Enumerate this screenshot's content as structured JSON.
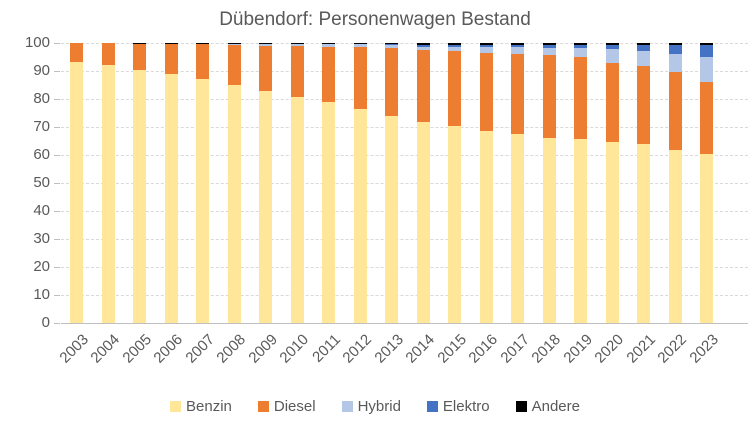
{
  "chart_data": {
    "type": "bar",
    "stacked": true,
    "percent_stacked": true,
    "title": "Dübendorf: Personenwagen Bestand",
    "categories": [
      "2003",
      "2004",
      "2005",
      "2006",
      "2007",
      "2008",
      "2009",
      "2010",
      "2011",
      "2012",
      "2013",
      "2014",
      "2015",
      "2016",
      "2017",
      "2018",
      "2019",
      "2020",
      "2021",
      "2022",
      "2023"
    ],
    "series": [
      {
        "name": "Benzin",
        "color": "#FFE699",
        "values": [
          93.2,
          92.3,
          90.4,
          88.8,
          87.1,
          85.0,
          82.9,
          80.8,
          78.9,
          76.4,
          73.9,
          71.7,
          70.5,
          68.6,
          67.5,
          66.0,
          65.6,
          64.5,
          63.8,
          61.8,
          60.2
        ]
      },
      {
        "name": "Diesel",
        "color": "#ED7D31",
        "values": [
          6.8,
          7.7,
          9.1,
          10.7,
          12.4,
          14.3,
          16.2,
          18.1,
          19.8,
          22.1,
          24.4,
          25.8,
          26.5,
          27.8,
          28.5,
          29.6,
          29.5,
          28.4,
          28.0,
          28.0,
          26.0
        ]
      },
      {
        "name": "Hybrid",
        "color": "#B4C7E7",
        "values": [
          0,
          0,
          0,
          0,
          0,
          0.2,
          0.4,
          0.6,
          0.8,
          1.0,
          1.1,
          1.2,
          1.5,
          2.1,
          2.4,
          2.6,
          3.0,
          5.0,
          5.4,
          6.3,
          8.7
        ]
      },
      {
        "name": "Elektro",
        "color": "#4472C4",
        "values": [
          0,
          0,
          0,
          0,
          0,
          0,
          0,
          0,
          0,
          0,
          0.1,
          0.7,
          0.9,
          0.9,
          1.0,
          1.2,
          1.3,
          1.4,
          2.2,
          3.1,
          4.3
        ]
      },
      {
        "name": "Andere",
        "color": "#000000",
        "values": [
          0,
          0,
          0.5,
          0.5,
          0.5,
          0.5,
          0.5,
          0.5,
          0.5,
          0.5,
          0.5,
          0.6,
          0.6,
          0.6,
          0.6,
          0.6,
          0.6,
          0.7,
          0.6,
          0.8,
          0.8
        ]
      }
    ],
    "xlabel": "",
    "ylabel": "",
    "ylim": [
      0,
      100
    ],
    "ytick_step": 10,
    "ytick_labels": [
      "0",
      "10",
      "20",
      "30",
      "40",
      "50",
      "60",
      "70",
      "80",
      "90",
      "100"
    ],
    "grid": true,
    "legend_position": "bottom",
    "colors": {
      "title_text": "#595959",
      "axis_text": "#595959",
      "gridline": "#D9D9D9",
      "axis_line": "#BFBFBF",
      "background": "#FFFFFF"
    }
  }
}
